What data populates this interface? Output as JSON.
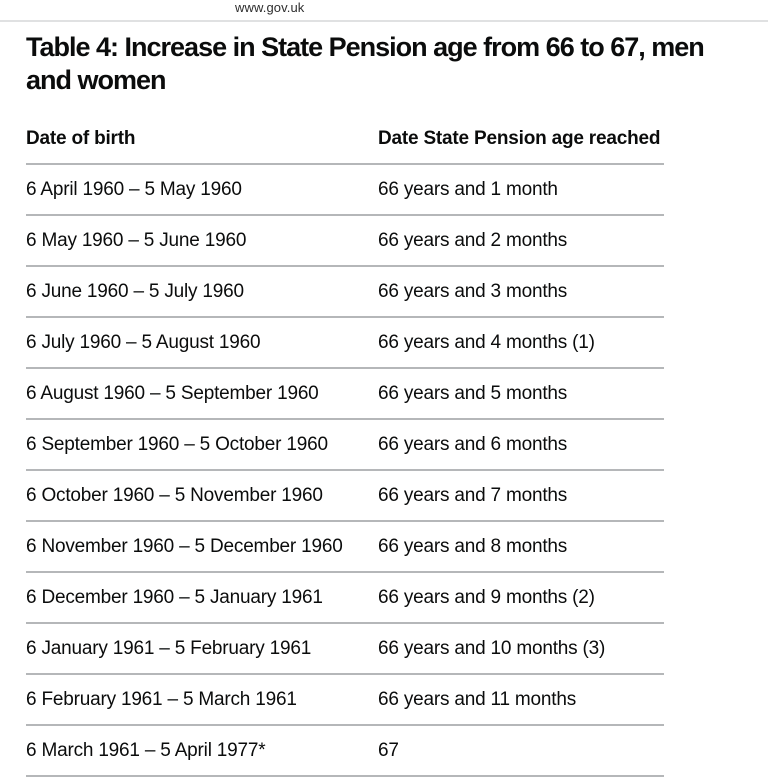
{
  "site": {
    "url_label": "www.gov.uk"
  },
  "heading": {
    "text": "Table 4: Increase in State Pension age from 66 to 67, men and women",
    "line1": "Table 4: Increase in State Pension age from 66 to 67, men",
    "line2": "and women"
  },
  "table": {
    "columns": [
      "Date of birth",
      "Date State Pension age reached"
    ],
    "rows": [
      {
        "dob": "6 April 1960 – 5 May 1960",
        "age": "66 years and 1 month"
      },
      {
        "dob": "6 May 1960 – 5 June 1960",
        "age": "66 years and 2 months"
      },
      {
        "dob": "6 June 1960 – 5 July 1960",
        "age": "66 years and 3 months"
      },
      {
        "dob": "6 July 1960 – 5 August 1960",
        "age": "66 years and 4 months (1)"
      },
      {
        "dob": "6 August 1960 – 5 September 1960",
        "age": "66 years and 5 months"
      },
      {
        "dob": "6 September 1960 – 5 October 1960",
        "age": "66 years and 6 months"
      },
      {
        "dob": "6 October 1960 – 5 November 1960",
        "age": "66 years and 7 months"
      },
      {
        "dob": "6 November 1960 – 5 December 1960",
        "age": "66 years and 8 months"
      },
      {
        "dob": "6 December 1960 – 5 January 1961",
        "age": "66 years and 9 months (2)"
      },
      {
        "dob": "6 January 1961 – 5 February 1961",
        "age": "66 years and 10 months (3)"
      },
      {
        "dob": "6 February 1961 – 5 March 1961",
        "age": "66 years and 11 months"
      },
      {
        "dob": "6 March 1961 – 5 April 1977*",
        "age": "67"
      }
    ]
  },
  "colors": {
    "text": "#0b0c0c",
    "row_border": "#b5b7b9",
    "top_rule": "#e0e1e2"
  }
}
